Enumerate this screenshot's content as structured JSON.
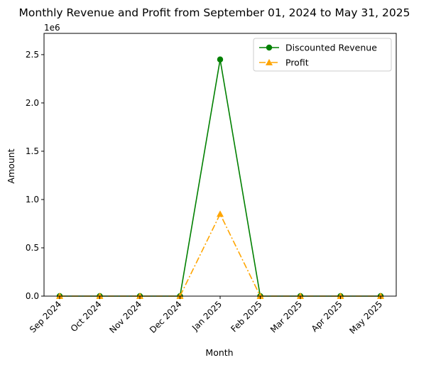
{
  "chart_data": {
    "type": "line",
    "title": "Monthly Revenue and Profit from September 01, 2024 to May 31, 2025",
    "xlabel": "Month",
    "ylabel": "Amount",
    "y_offset_label": "1e6",
    "categories": [
      "Sep 2024",
      "Oct 2024",
      "Nov 2024",
      "Dec 2024",
      "Jan 2025",
      "Feb 2025",
      "Mar 2025",
      "Apr 2025",
      "May 2025"
    ],
    "ylim": [
      0,
      2.72
    ],
    "yticks": [
      0.0,
      0.5,
      1.0,
      1.5,
      2.0,
      2.5
    ],
    "ytick_labels": [
      "0.0",
      "0.5",
      "1.0",
      "1.5",
      "2.0",
      "2.5"
    ],
    "grid": false,
    "legend_position": "top-right",
    "series": [
      {
        "name": "Discounted Revenue",
        "values": [
          0,
          0,
          0,
          0,
          2.45,
          0,
          0,
          0,
          0
        ],
        "color": "#008000",
        "marker": "circle",
        "line_style": "solid"
      },
      {
        "name": "Profit",
        "values": [
          0,
          0,
          0,
          0,
          0.85,
          0,
          0,
          0,
          0
        ],
        "color": "#FFA500",
        "marker": "triangle",
        "line_style": "dashdot"
      }
    ]
  }
}
